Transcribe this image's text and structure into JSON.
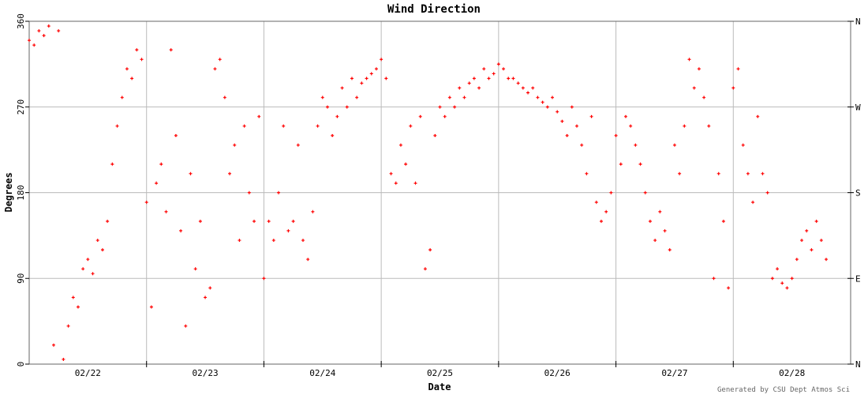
{
  "chart_data": {
    "type": "scatter",
    "title": "Wind Direction",
    "xlabel": "Date",
    "ylabel": "Degrees",
    "footer": "Generated by CSU Dept Atmos Sci",
    "ylim": [
      0,
      360
    ],
    "yticks": [
      "0",
      "90",
      "180",
      "270",
      "360"
    ],
    "right_ticks": [
      "N",
      "E",
      "S",
      "W",
      "N"
    ],
    "xlim_days": [
      0,
      7
    ],
    "xtick_labels": [
      "02/22",
      "02/23",
      "02/24",
      "02/25",
      "02/26",
      "02/27",
      "02/28"
    ],
    "grid": true,
    "point_color": "#ff0000",
    "x_units": "hours since 02/22 00:00",
    "series": [
      {
        "name": "wind direction",
        "values": [
          340,
          335,
          350,
          345,
          355,
          20,
          350,
          5,
          40,
          70,
          60,
          100,
          110,
          95,
          130,
          120,
          150,
          210,
          250,
          280,
          310,
          300,
          330,
          320,
          170,
          60,
          190,
          210,
          160,
          330,
          240,
          140,
          40,
          200,
          100,
          150,
          70,
          80,
          310,
          320,
          280,
          200,
          230,
          130,
          250,
          180,
          150,
          260,
          90,
          150,
          130,
          180,
          250,
          140,
          150,
          230,
          130,
          110,
          160,
          250,
          280,
          270,
          240,
          260,
          290,
          270,
          300,
          280,
          295,
          300,
          305,
          310,
          320,
          300,
          200,
          190,
          230,
          210,
          250,
          190,
          260,
          100,
          120,
          240,
          270,
          260,
          280,
          270,
          290,
          280,
          295,
          300,
          290,
          310,
          300,
          305,
          315,
          310,
          300,
          300,
          295,
          290,
          285,
          290,
          280,
          275,
          270,
          280,
          265,
          255,
          240,
          270,
          250,
          230,
          200,
          260,
          170,
          150,
          160,
          180,
          240,
          210,
          260,
          250,
          230,
          210,
          180,
          150,
          130,
          160,
          140,
          120,
          230,
          200,
          250,
          320,
          290,
          310,
          280,
          250,
          90,
          200,
          150,
          80,
          290,
          310,
          230,
          200,
          170,
          260,
          200,
          180,
          90,
          100,
          85,
          80,
          90,
          110,
          130,
          140,
          120,
          150,
          130,
          110
        ]
      }
    ]
  }
}
